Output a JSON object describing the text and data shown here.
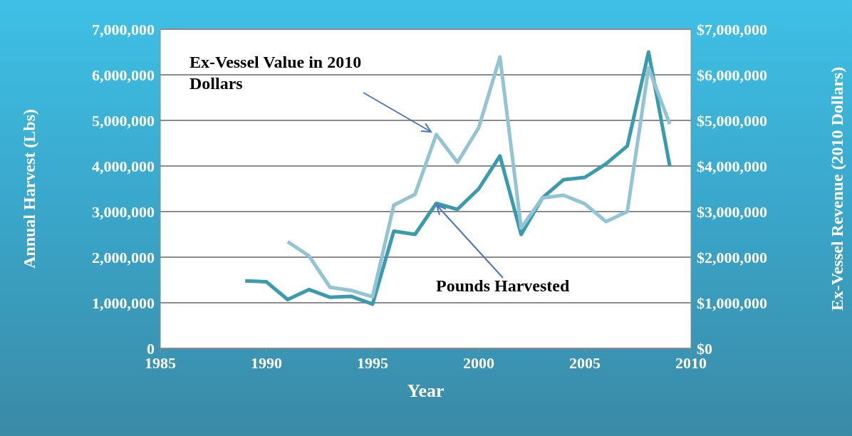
{
  "chart_data": {
    "type": "line",
    "xlabel": "Year",
    "ylabel": "Annual Harvest (Lbs)",
    "y2label": "Ex-Vessel Revenue (2010 Dollars)",
    "x": [
      1989,
      1990,
      1991,
      1992,
      1993,
      1994,
      1995,
      1996,
      1997,
      1998,
      1999,
      2000,
      2001,
      2002,
      2003,
      2004,
      2005,
      2006,
      2007,
      2008,
      2009
    ],
    "series": [
      {
        "color": "#3a9aae",
        "values": [
          1480000,
          1460000,
          1070000,
          1290000,
          1120000,
          1140000,
          970000,
          2570000,
          2500000,
          3180000,
          3050000,
          3500000,
          4220000,
          2500000,
          3300000,
          3700000,
          3750000,
          4050000,
          4440000,
          6500000,
          4000000
        ]
      },
      {
        "color": "#92c4d4",
        "axis": "y2",
        "values": [
          null,
          null,
          2340000,
          2030000,
          1340000,
          1270000,
          1130000,
          3140000,
          3380000,
          4690000,
          4080000,
          4840000,
          6390000,
          2640000,
          3300000,
          3360000,
          3170000,
          2780000,
          3000000,
          6150000,
          4920000
        ]
      }
    ],
    "xlim": [
      1985,
      2010
    ],
    "xticks": [
      1985,
      1990,
      1995,
      2000,
      2005,
      2010
    ],
    "ylim": [
      0,
      7000000
    ],
    "yticks": [
      0,
      {
        "value": 1000000,
        "label": "1,000,000"
      },
      {
        "value": 2000000,
        "label": "2,000,000"
      },
      {
        "value": 3000000,
        "label": "3,000,000"
      },
      {
        "value": 4000000,
        "label": "4,000,000"
      },
      {
        "value": 5000000,
        "label": "5,000,000"
      },
      {
        "value": 6000000,
        "label": "6,000,000"
      },
      {
        "value": 7000000,
        "label": "7,000,000"
      }
    ],
    "y2lim": [
      0,
      7000000
    ],
    "y2ticks": [
      {
        "value": 0,
        "label": "$0"
      },
      {
        "value": 1000000,
        "label": "$1,000,000"
      },
      {
        "value": 2000000,
        "label": "$2,000,000"
      },
      {
        "value": 3000000,
        "label": "$3,000,000"
      },
      {
        "value": 4000000,
        "label": "$4,000,000"
      },
      {
        "value": 5000000,
        "label": "$5,000,000"
      },
      {
        "value": 6000000,
        "label": "$6,000,000"
      },
      {
        "value": 7000000,
        "label": "$7,000,000"
      }
    ],
    "grid": "y",
    "line_style": "solid",
    "marker": "none",
    "annotations": [
      {
        "text": "Ex-Vessel Value in 2010 Dollars",
        "x": 1998,
        "y": 4690000
      },
      {
        "text": "Pounds Harvested",
        "x": 1998,
        "y": 3180000
      }
    ]
  }
}
